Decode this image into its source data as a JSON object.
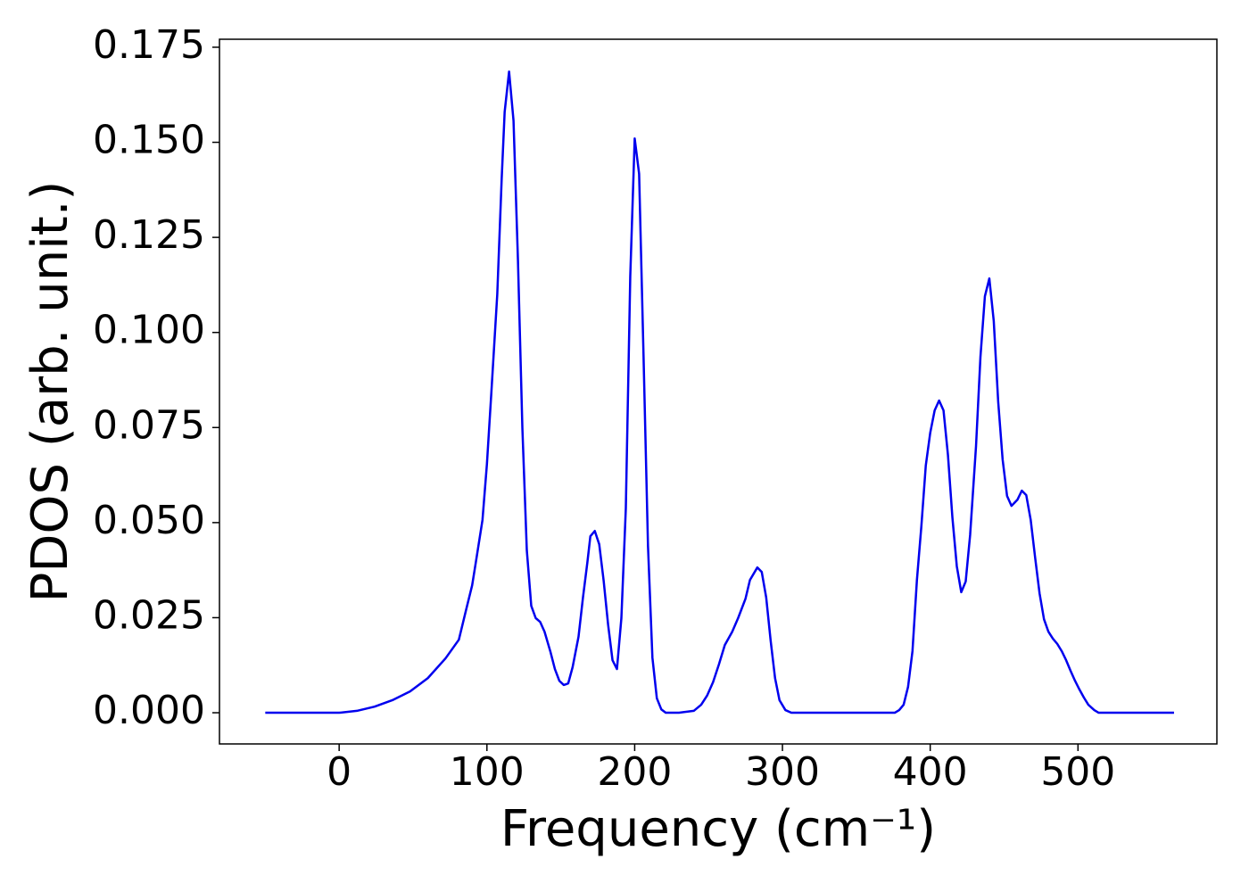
{
  "chart_data": {
    "type": "line",
    "xlabel": "Frequency (cm⁻¹)",
    "ylabel": "PDOS (arb. unit.)",
    "x": [
      -50,
      0,
      12,
      24,
      36,
      48,
      60,
      72,
      81,
      86,
      90,
      93,
      97,
      100,
      103,
      107,
      110,
      112,
      115,
      118,
      121,
      124,
      127,
      130,
      133,
      136,
      139,
      143,
      146,
      149,
      152,
      155,
      158,
      162,
      165,
      168,
      170,
      173,
      176,
      179,
      182,
      185,
      188,
      191,
      194,
      197,
      200,
      203,
      206,
      209,
      212,
      215,
      218,
      221,
      230,
      240,
      245,
      249,
      253,
      257,
      261,
      266,
      270,
      275,
      278,
      283,
      286,
      289,
      292,
      295,
      298,
      302,
      306,
      376,
      379,
      382,
      385,
      388,
      391,
      394,
      397,
      400,
      403,
      406,
      409,
      412,
      415,
      418,
      421,
      424,
      427,
      431,
      434,
      437,
      440,
      443,
      446,
      449,
      452,
      455,
      459,
      462,
      465,
      468,
      471,
      474,
      477,
      480,
      483,
      486,
      489,
      492,
      495,
      498,
      501,
      504,
      507,
      511,
      514,
      565
    ],
    "series": [
      {
        "name": "PDOS",
        "color": "#0000ee",
        "values": [
          0,
          0,
          0.0005,
          0.0016,
          0.0033,
          0.0056,
          0.0091,
          0.0143,
          0.0192,
          0.0272,
          0.0335,
          0.0408,
          0.0507,
          0.0654,
          0.0842,
          0.11,
          0.1405,
          0.158,
          0.1686,
          0.1557,
          0.119,
          0.0748,
          0.0427,
          0.0281,
          0.0249,
          0.0239,
          0.0213,
          0.016,
          0.0115,
          0.0084,
          0.0073,
          0.0077,
          0.012,
          0.02,
          0.0303,
          0.0396,
          0.0464,
          0.0478,
          0.0443,
          0.0347,
          0.0232,
          0.0138,
          0.0115,
          0.0249,
          0.0537,
          0.1147,
          0.151,
          0.1417,
          0.0936,
          0.0439,
          0.0145,
          0.0038,
          0.0009,
          0,
          0,
          0.0005,
          0.0021,
          0.0045,
          0.008,
          0.0127,
          0.0178,
          0.0213,
          0.0249,
          0.03,
          0.0349,
          0.0382,
          0.037,
          0.0303,
          0.019,
          0.0091,
          0.0033,
          0.0007,
          0,
          0,
          0.0007,
          0.0021,
          0.0068,
          0.0162,
          0.0349,
          0.049,
          0.065,
          0.0736,
          0.0795,
          0.0821,
          0.0795,
          0.0678,
          0.0514,
          0.0385,
          0.0317,
          0.0345,
          0.0467,
          0.0701,
          0.0936,
          0.1095,
          0.1142,
          0.103,
          0.0818,
          0.0666,
          0.057,
          0.0544,
          0.056,
          0.0584,
          0.0572,
          0.0507,
          0.0408,
          0.0314,
          0.0246,
          0.0213,
          0.0195,
          0.0181,
          0.0162,
          0.0138,
          0.011,
          0.0084,
          0.0061,
          0.004,
          0.0021,
          0.0007,
          0,
          0
        ]
      }
    ],
    "xlim": [
      -81,
      594
    ],
    "ylim": [
      -0.0082,
      0.1771
    ],
    "xticks": [
      0,
      100,
      200,
      300,
      400,
      500
    ],
    "yticks": [
      {
        "value": 0,
        "label": "0.000"
      },
      {
        "value": 0.025,
        "label": "0.025"
      },
      {
        "value": 0.05,
        "label": "0.050"
      },
      {
        "value": 0.075,
        "label": "0.075"
      },
      {
        "value": 0.1,
        "label": "0.100"
      },
      {
        "value": 0.125,
        "label": "0.125"
      },
      {
        "value": 0.15,
        "label": "0.150"
      },
      {
        "value": 0.175,
        "label": "0.175"
      }
    ],
    "grid": false
  }
}
